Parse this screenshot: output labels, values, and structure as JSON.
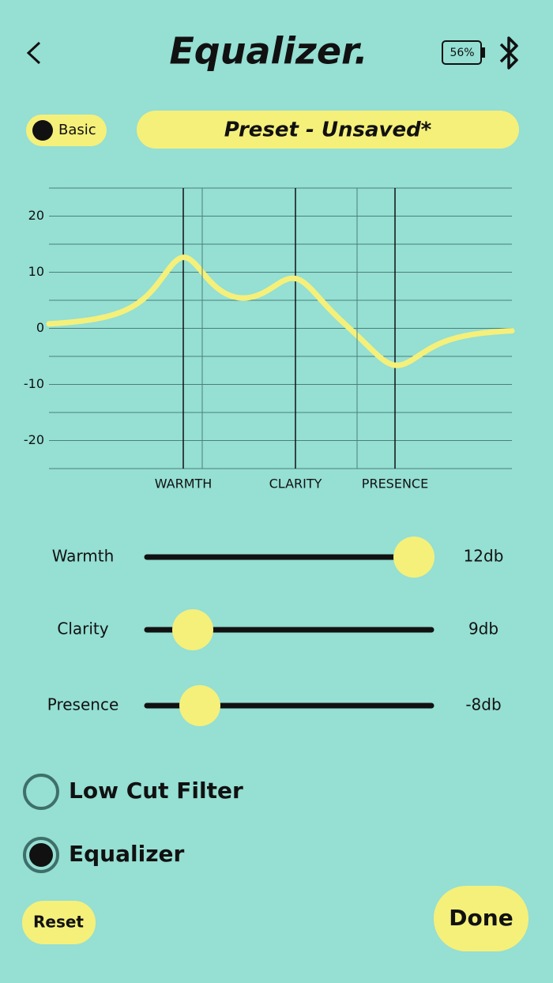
{
  "header": {
    "title": "Equalizer.",
    "battery": "56%"
  },
  "mode_toggle": "Basic",
  "preset": "Preset - Unsaved*",
  "graph": {
    "ylim": [
      -25,
      25
    ],
    "yticks": [
      20,
      10,
      0,
      -10,
      -20
    ],
    "gridlines": [
      25,
      20,
      15,
      10,
      5,
      0,
      -5,
      -10,
      -15,
      -20,
      -25
    ],
    "bands": [
      {
        "label": "WARMTH",
        "gain": 12
      },
      {
        "label": "CLARITY",
        "gain": 9
      },
      {
        "label": "PRESENCE",
        "gain": -8
      }
    ]
  },
  "sliders": [
    {
      "label": "Warmth",
      "value_label": "12db"
    },
    {
      "label": "Clarity",
      "value_label": "9db"
    },
    {
      "label": "Presence",
      "value_label": "-8db"
    }
  ],
  "options": [
    {
      "label": "Low Cut Filter",
      "selected": false
    },
    {
      "label": "Equalizer",
      "selected": true
    }
  ],
  "buttons": {
    "reset": "Reset",
    "done": "Done"
  }
}
